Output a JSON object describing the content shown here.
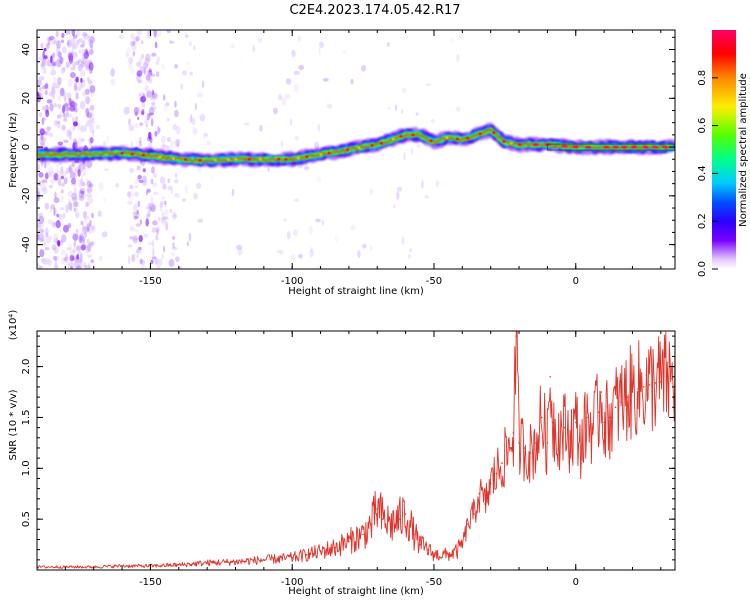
{
  "figure": {
    "title": "C2E4.2023.174.05.42.R17"
  },
  "chart_data": [
    {
      "type": "heatmap",
      "xlabel": "Height of straight line (km)",
      "ylabel": "Frequency (Hz)",
      "xlim": [
        -190,
        35
      ],
      "ylim": [
        -50,
        48
      ],
      "xticks": [
        -150,
        -100,
        -50,
        0
      ],
      "yticks": [
        -40,
        -20,
        0,
        20,
        40
      ],
      "grid": false,
      "ridge": {
        "x": [
          -190,
          -175,
          -160,
          -150,
          -140,
          -130,
          -120,
          -110,
          -100,
          -90,
          -80,
          -70,
          -60,
          -55,
          -50,
          -45,
          -40,
          -35,
          -30,
          -25,
          -20,
          -10,
          0,
          10,
          20,
          34
        ],
        "y": [
          -3,
          -3,
          -2.5,
          -3.5,
          -5,
          -5.5,
          -5,
          -5,
          -5,
          -3,
          -1,
          1,
          5,
          5,
          2,
          4,
          3,
          5,
          7,
          2,
          1,
          1,
          0,
          0,
          0,
          0
        ]
      },
      "colorbar": {
        "label": "Normalized spectral amplitude",
        "range": [
          0,
          1
        ],
        "ticks": [
          0.0,
          0.2,
          0.4,
          0.6,
          0.8
        ],
        "colormap": [
          "#ffffff",
          "#e3c8ff",
          "#7a00ff",
          "#2a00ff",
          "#0050ff",
          "#00ccff",
          "#00ff88",
          "#55ff00",
          "#ffee00",
          "#ff8800",
          "#ff0000",
          "#ff0066"
        ]
      }
    },
    {
      "type": "line",
      "xlabel": "Height of straight line (km)",
      "ylabel": "SNR (10 * v/v)",
      "yscale_label": "(x10⁴)",
      "xlim": [
        -190,
        35
      ],
      "ylim": [
        0,
        2.35
      ],
      "xticks": [
        -150,
        -100,
        -50,
        0
      ],
      "yticks": [
        0.5,
        1.0,
        1.5,
        2.0
      ],
      "grid": false,
      "series": [
        {
          "color": "#e0332a",
          "x": [
            -190,
            -180,
            -170,
            -160,
            -150,
            -140,
            -130,
            -120,
            -110,
            -100,
            -95,
            -90,
            -85,
            -80,
            -75,
            -72,
            -70,
            -68,
            -65,
            -62,
            -60,
            -57,
            -55,
            -52,
            -50,
            -45,
            -42,
            -40,
            -38,
            -36,
            -34,
            -32,
            -30,
            -28,
            -26,
            -24,
            -22,
            -21,
            -20,
            -18,
            -16,
            -14,
            -12,
            -10,
            -9,
            -8,
            -6,
            -4,
            -2,
            0,
            2,
            4,
            6,
            8,
            9,
            10,
            12,
            14,
            16,
            18,
            20,
            22,
            24,
            26,
            28,
            30,
            32,
            34
          ],
          "y": [
            0.03,
            0.03,
            0.03,
            0.04,
            0.04,
            0.05,
            0.07,
            0.08,
            0.1,
            0.12,
            0.15,
            0.18,
            0.22,
            0.28,
            0.35,
            0.45,
            0.6,
            0.5,
            0.45,
            0.5,
            0.55,
            0.35,
            0.25,
            0.2,
            0.15,
            0.15,
            0.18,
            0.25,
            0.45,
            0.55,
            0.75,
            0.65,
            0.85,
            0.95,
            1.05,
            1.15,
            1.35,
            2.3,
            1.25,
            1.2,
            1.15,
            1.25,
            1.5,
            1.25,
            1.9,
            1.45,
            1.35,
            1.4,
            1.3,
            1.45,
            1.2,
            1.5,
            1.4,
            1.55,
            1.75,
            1.45,
            1.5,
            1.6,
            1.65,
            1.7,
            1.75,
            1.78,
            1.8,
            1.82,
            1.84,
            1.85,
            1.86,
            1.88
          ]
        }
      ]
    }
  ]
}
